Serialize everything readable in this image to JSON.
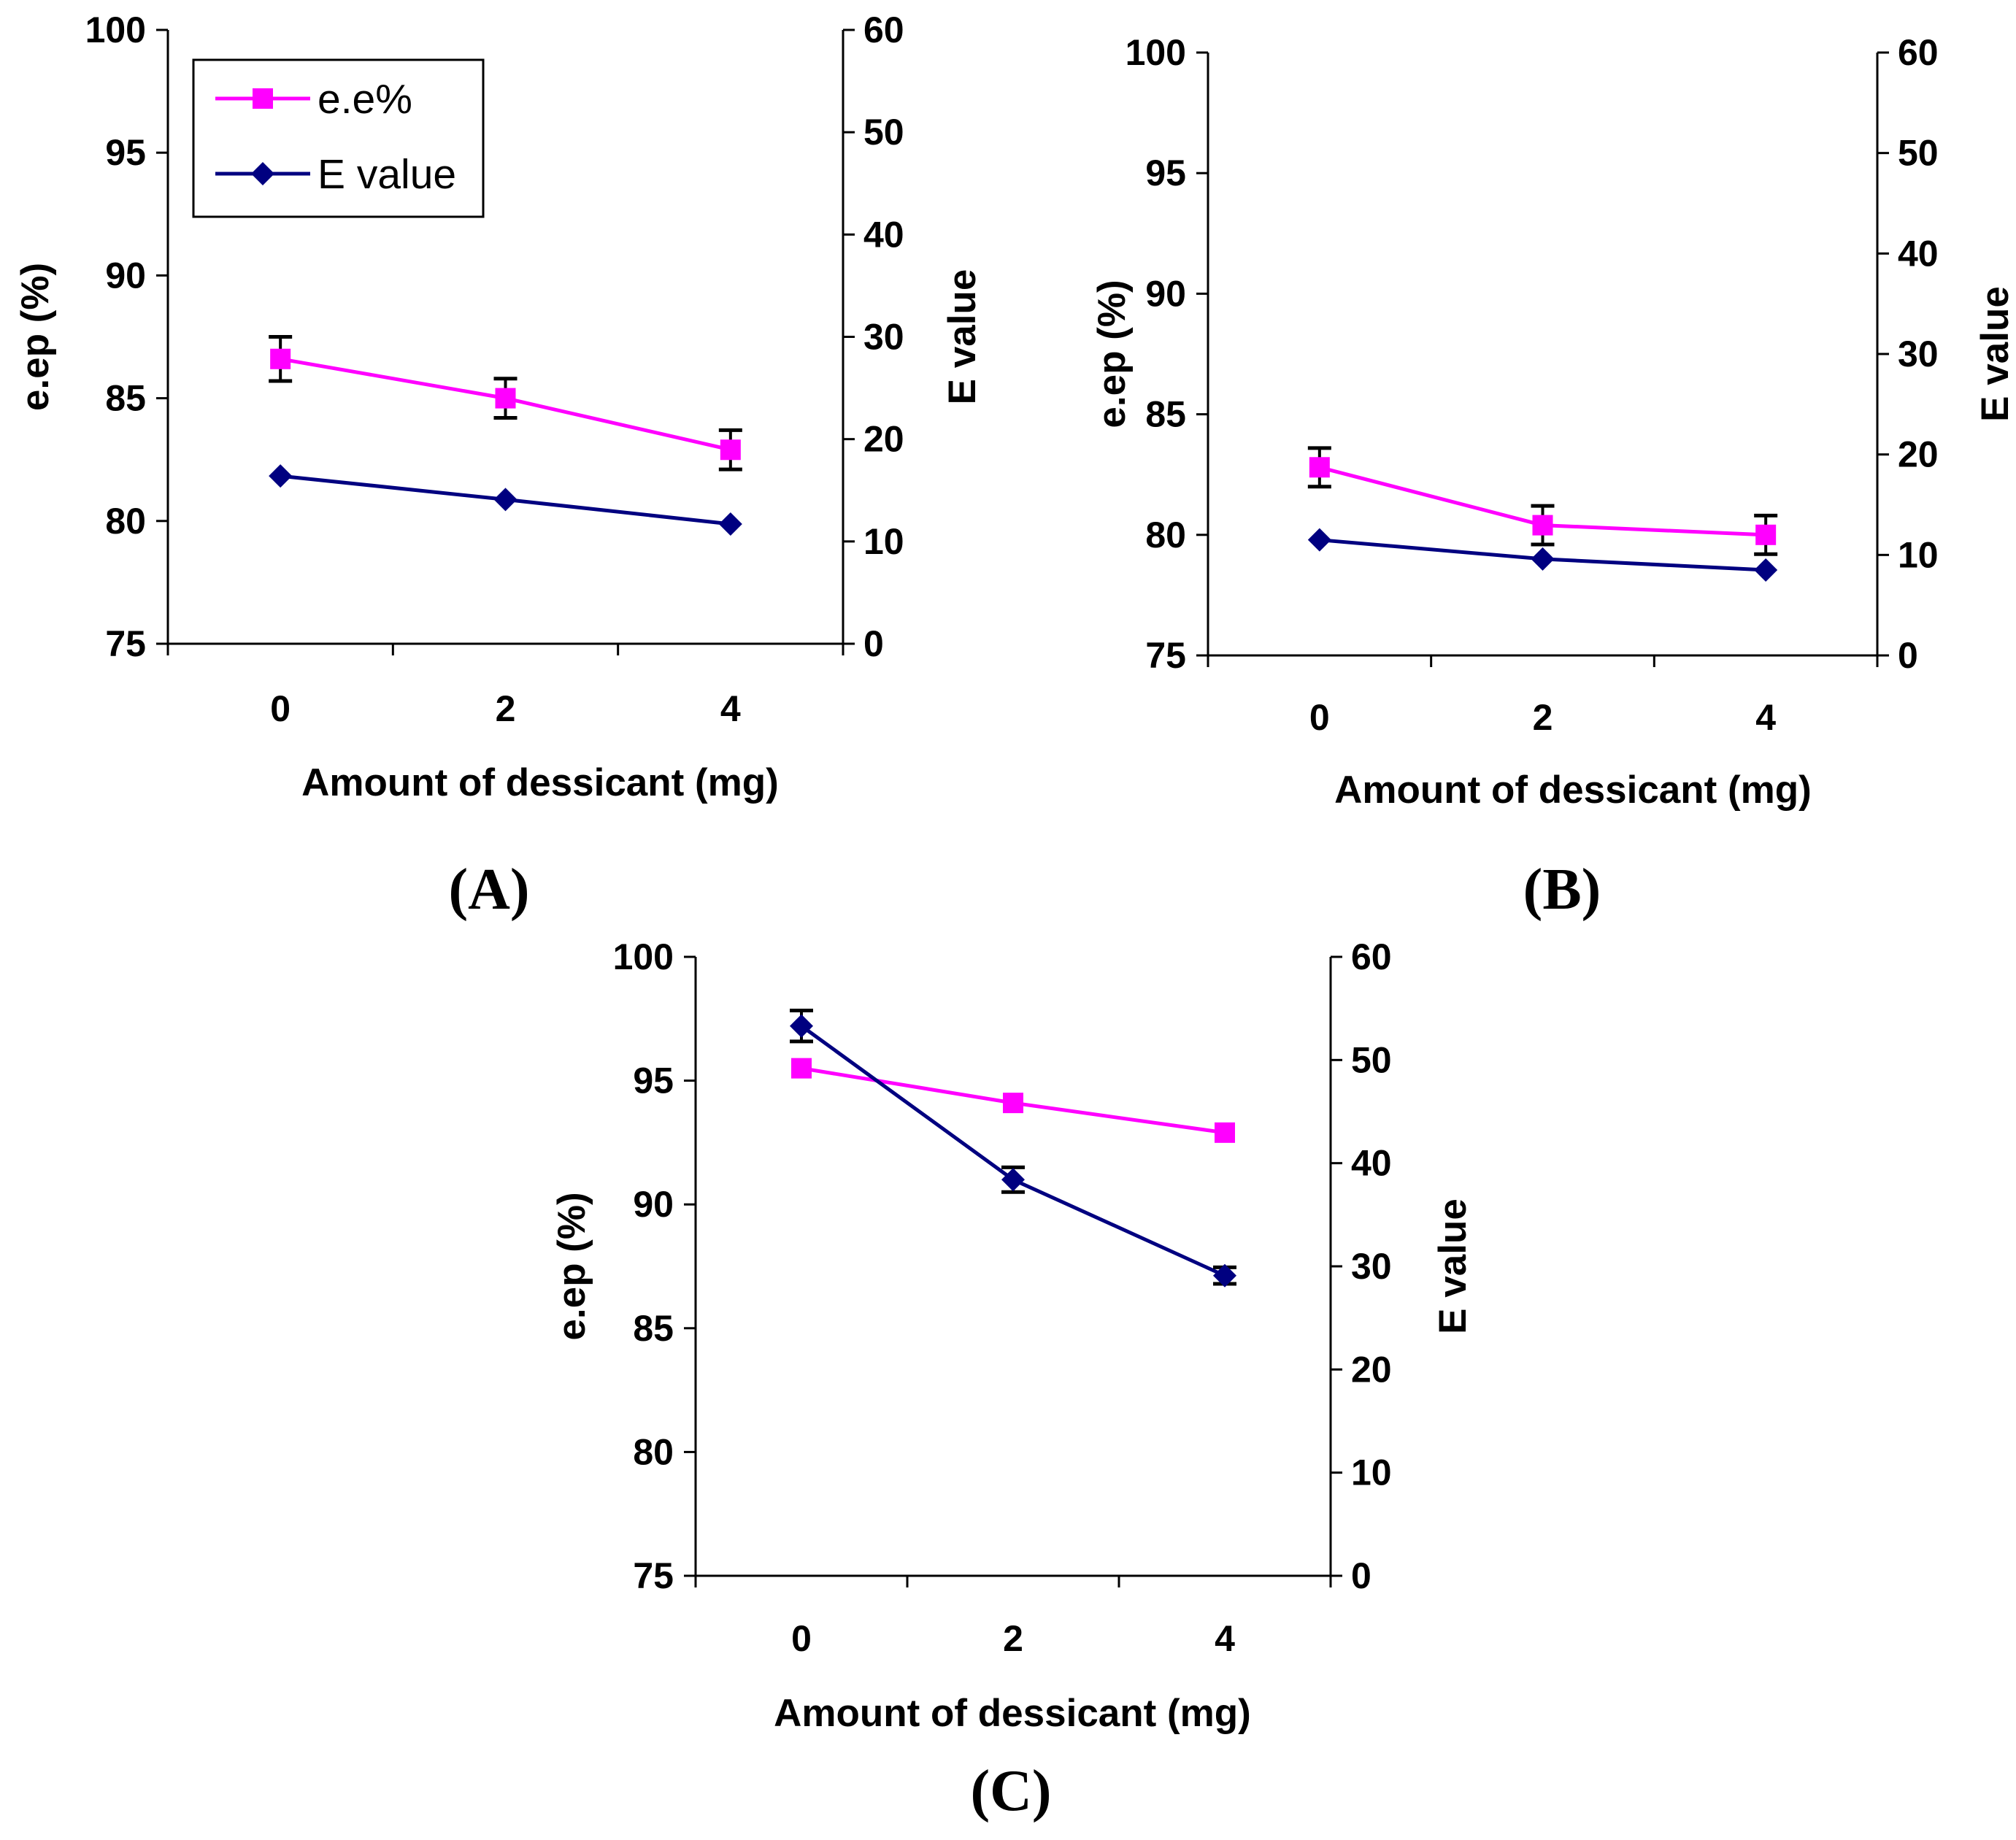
{
  "colors": {
    "ee_series": "#ff00ff",
    "e_value_series": "#000080",
    "axis": "#000000",
    "error_bar": "#000000",
    "background": "#ffffff"
  },
  "legend": {
    "placement": "top-left of panel A plot area",
    "items": [
      {
        "label": "e.e%",
        "series": "ee",
        "marker": "square",
        "icon": "square-marker-icon"
      },
      {
        "label": "E value",
        "series": "e_value",
        "marker": "diamond",
        "icon": "diamond-marker-icon"
      }
    ]
  },
  "chart_data": [
    {
      "type": "line",
      "panel_label": "(A)",
      "xlabel": "Amount of dessicant (mg)",
      "ylabel": "e.ep (%)",
      "y2label": "E value",
      "x": [
        0,
        2,
        4
      ],
      "x_ticks": [
        "0",
        "2",
        "4"
      ],
      "ylim": [
        75,
        100
      ],
      "y_ticks": [
        "75",
        "80",
        "85",
        "90",
        "95",
        "100"
      ],
      "y2lim": [
        0,
        60
      ],
      "y2_ticks": [
        "0",
        "10",
        "20",
        "30",
        "40",
        "50",
        "60"
      ],
      "grid": false,
      "series": [
        {
          "name": "e.e%",
          "axis": "left",
          "marker": "square",
          "values": [
            86.6,
            85.0,
            82.9
          ],
          "errors": [
            0.9,
            0.8,
            0.8
          ]
        },
        {
          "name": "E value",
          "axis": "right",
          "marker": "diamond",
          "values": [
            16.4,
            14.1,
            11.7
          ],
          "errors": [
            0,
            0,
            0
          ]
        }
      ]
    },
    {
      "type": "line",
      "panel_label": "(B)",
      "xlabel": "Amount of dessicant (mg)",
      "ylabel": "e.ep (%)",
      "y2label": "E value",
      "x": [
        0,
        2,
        4
      ],
      "x_ticks": [
        "0",
        "2",
        "4"
      ],
      "ylim": [
        75,
        100
      ],
      "y_ticks": [
        "75",
        "80",
        "85",
        "90",
        "95",
        "100"
      ],
      "y2lim": [
        0,
        60
      ],
      "y2_ticks": [
        "0",
        "10",
        "20",
        "30",
        "40",
        "50",
        "60"
      ],
      "grid": false,
      "series": [
        {
          "name": "e.e%",
          "axis": "left",
          "marker": "square",
          "values": [
            82.8,
            80.4,
            80.0
          ],
          "errors": [
            0.8,
            0.8,
            0.8
          ]
        },
        {
          "name": "E value",
          "axis": "right",
          "marker": "diamond",
          "values": [
            11.5,
            9.6,
            8.5
          ],
          "errors": [
            0,
            0,
            0
          ]
        }
      ]
    },
    {
      "type": "line",
      "panel_label": "(C)",
      "xlabel": "Amount of dessicant (mg)",
      "ylabel": "e.ep (%)",
      "y2label": "E value",
      "x": [
        0,
        2,
        4
      ],
      "x_ticks": [
        "0",
        "2",
        "4"
      ],
      "ylim": [
        75,
        100
      ],
      "y_ticks": [
        "75",
        "80",
        "85",
        "90",
        "95",
        "100"
      ],
      "y2lim": [
        0,
        60
      ],
      "y2_ticks": [
        "0",
        "10",
        "20",
        "30",
        "40",
        "50",
        "60"
      ],
      "grid": false,
      "series": [
        {
          "name": "e.e%",
          "axis": "left",
          "marker": "square",
          "values": [
            95.5,
            94.1,
            92.9
          ],
          "errors": [
            0,
            0,
            0
          ]
        },
        {
          "name": "E value",
          "axis": "right",
          "marker": "diamond",
          "values": [
            53.3,
            38.4,
            29.1
          ],
          "errors": [
            1.5,
            1.2,
            0.8
          ]
        }
      ]
    }
  ]
}
